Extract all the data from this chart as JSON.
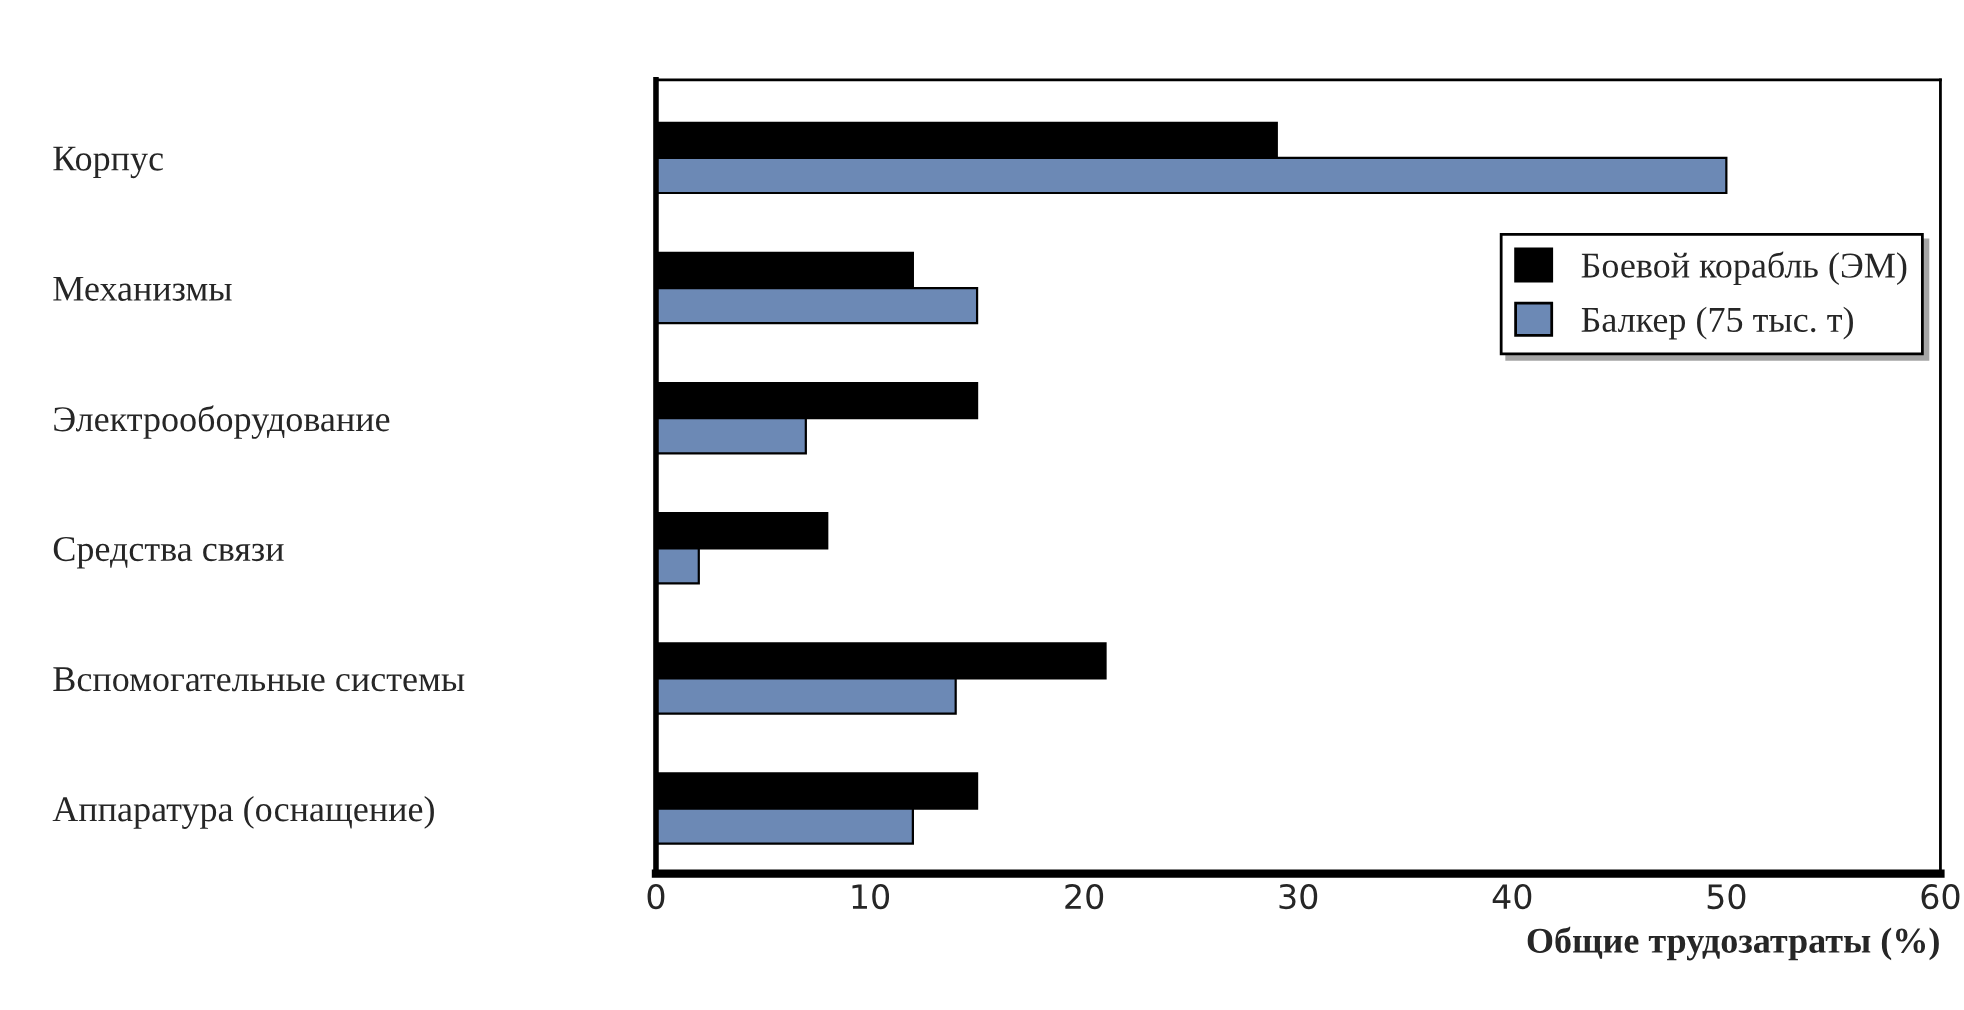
{
  "chart_data": {
    "type": "bar",
    "orientation": "horizontal",
    "xlabel": "Общие трудозатраты (%)",
    "categories": [
      "Корпус",
      "Механизмы",
      "Электрооборудование",
      "Средства связи",
      "Вспомогательные системы",
      "Аппаратура (оснащение)"
    ],
    "series": [
      {
        "name": "Боевой корабль (ЭМ)",
        "color": "#000000",
        "values": [
          29,
          12,
          15,
          8,
          21,
          15
        ]
      },
      {
        "name": "Балкер (75 тыс. т)",
        "color": "#6c89b5",
        "values": [
          50,
          15,
          7,
          2,
          14,
          12
        ]
      }
    ],
    "xlim": [
      0,
      60
    ],
    "xticks": [
      0,
      10,
      20,
      30,
      40,
      50,
      60
    ],
    "grid": false,
    "legend": "right"
  }
}
